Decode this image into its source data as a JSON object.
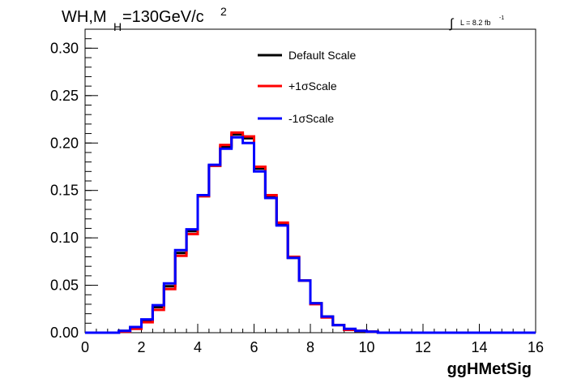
{
  "chart_data": {
    "type": "histogram",
    "title_main": "WH,M",
    "title_sub": "H",
    "title_rest": "=130GeV/c",
    "title_sup": "2",
    "lumi_int": "∫",
    "lumi_label": "L = 8.2 fb",
    "lumi_sup": "-1",
    "xlabel": "ggHMetSig",
    "ylabel": "",
    "xlim": [
      0,
      16
    ],
    "ylim": [
      0,
      0.32
    ],
    "xticks": [
      0,
      2,
      4,
      6,
      8,
      10,
      12,
      14,
      16
    ],
    "xtick_labels": [
      "0",
      "2",
      "4",
      "6",
      "8",
      "10",
      "12",
      "14",
      "16"
    ],
    "yticks": [
      0.0,
      0.05,
      0.1,
      0.15,
      0.2,
      0.25,
      0.3
    ],
    "ytick_labels": [
      "0.00",
      "0.05",
      "0.10",
      "0.15",
      "0.20",
      "0.25",
      "0.30"
    ],
    "grid": false,
    "legend_position": "top-center",
    "bin_edges": [
      0,
      0.4,
      0.8,
      1.2,
      1.6,
      2.0,
      2.4,
      2.8,
      3.2,
      3.6,
      4.0,
      4.4,
      4.8,
      5.2,
      5.6,
      6.0,
      6.4,
      6.8,
      7.2,
      7.6,
      8.0,
      8.4,
      8.8,
      9.2,
      9.6,
      10.0,
      10.4,
      10.8,
      11.2,
      11.6,
      12.0,
      12.4,
      12.8,
      13.2,
      13.6,
      14.0,
      14.4,
      14.8,
      15.2,
      15.6,
      16.0
    ],
    "series": [
      {
        "name": "Default Scale",
        "color": "#000000",
        "values": [
          0.0,
          0.0,
          0.0,
          0.002,
          0.005,
          0.013,
          0.027,
          0.049,
          0.084,
          0.107,
          0.144,
          0.176,
          0.196,
          0.209,
          0.205,
          0.173,
          0.143,
          0.114,
          0.079,
          0.055,
          0.031,
          0.017,
          0.008,
          0.003,
          0.002,
          0.001,
          0.0,
          0.0,
          0.0,
          0.0,
          0.0,
          0.0,
          0.0,
          0.0,
          0.0,
          0.0,
          0.0,
          0.0,
          0.0,
          0.0
        ]
      },
      {
        "name": "+1σScale",
        "color": "#ff0000",
        "values": [
          0.0,
          0.0,
          0.0,
          0.001,
          0.004,
          0.011,
          0.024,
          0.046,
          0.081,
          0.104,
          0.144,
          0.176,
          0.198,
          0.211,
          0.207,
          0.175,
          0.145,
          0.116,
          0.08,
          0.055,
          0.03,
          0.016,
          0.008,
          0.003,
          0.002,
          0.001,
          0.0,
          0.0,
          0.0,
          0.0,
          0.0,
          0.0,
          0.0,
          0.0,
          0.0,
          0.0,
          0.0,
          0.0,
          0.0,
          0.0
        ]
      },
      {
        "name": "-1σScale",
        "color": "#0000ff",
        "values": [
          0.0,
          0.0,
          0.0,
          0.002,
          0.006,
          0.014,
          0.029,
          0.052,
          0.087,
          0.109,
          0.145,
          0.177,
          0.194,
          0.206,
          0.2,
          0.17,
          0.142,
          0.113,
          0.079,
          0.055,
          0.031,
          0.017,
          0.008,
          0.004,
          0.002,
          0.001,
          0.0,
          0.0,
          0.0,
          0.0,
          0.0,
          0.0,
          0.0,
          0.0,
          0.0,
          0.0,
          0.0,
          0.0,
          0.0,
          0.0
        ]
      }
    ]
  }
}
